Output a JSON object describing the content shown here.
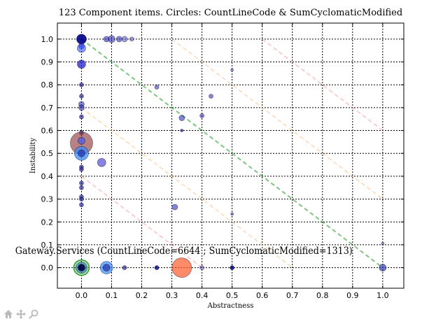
{
  "toolbar": {
    "icons": [
      "home-icon",
      "pan-icon",
      "zoom-icon"
    ]
  },
  "chart_data": {
    "type": "scatter",
    "title": "123 Component items. Circles: CountLineCode & SumCyclomaticModified",
    "xlabel": "Abstractness",
    "ylabel": "Instability",
    "xlim": [
      -0.08,
      1.07
    ],
    "ylim": [
      -0.09,
      1.07
    ],
    "x_ticks": [
      "0.0",
      "0.1",
      "0.2",
      "0.3",
      "0.4",
      "0.5",
      "0.6",
      "0.7",
      "0.8",
      "0.9",
      "1.0"
    ],
    "y_ticks": [
      "0.0",
      "0.1",
      "0.2",
      "0.3",
      "0.4",
      "0.5",
      "0.6",
      "0.7",
      "0.8",
      "0.9",
      "1.0"
    ],
    "grid": true,
    "reference_lines": [
      {
        "name": "main-sequence",
        "color": "#2ca02c",
        "from": [
          0.0,
          1.0
        ],
        "to": [
          1.0,
          0.0
        ]
      },
      {
        "name": "zone-0.3-lower",
        "color": "#ffb060",
        "from": [
          0.0,
          0.7
        ],
        "to": [
          0.7,
          0.0
        ]
      },
      {
        "name": "zone-0.3-upper",
        "color": "#ffb060",
        "from": [
          0.3,
          1.0
        ],
        "to": [
          1.0,
          0.3
        ]
      },
      {
        "name": "zone-0.6-lower",
        "color": "#ff7f7f",
        "from": [
          0.0,
          0.4
        ],
        "to": [
          0.4,
          0.0
        ]
      },
      {
        "name": "zone-0.6-upper",
        "color": "#ff7f7f",
        "from": [
          0.6,
          1.0
        ],
        "to": [
          1.0,
          0.6
        ]
      }
    ],
    "points": [
      {
        "x": 0.0,
        "y": 1.0,
        "r": 7,
        "color": "#00008b",
        "alpha": 0.9
      },
      {
        "x": 0.0,
        "y": 0.97,
        "r": 4,
        "color": "#3333cc",
        "alpha": 0.7
      },
      {
        "x": 0.0,
        "y": 0.96,
        "r": 6,
        "color": "#3355ff",
        "alpha": 0.6
      },
      {
        "x": 0.0,
        "y": 0.89,
        "r": 6,
        "color": "#2222cc",
        "alpha": 0.75
      },
      {
        "x": 0.0,
        "y": 0.8,
        "r": 3,
        "color": "#2a2a99",
        "alpha": 0.7
      },
      {
        "x": 0.0,
        "y": 0.75,
        "r": 3,
        "color": "#2a2a99",
        "alpha": 0.7
      },
      {
        "x": 0.0,
        "y": 0.715,
        "r": 4,
        "color": "#3333bb",
        "alpha": 0.6
      },
      {
        "x": 0.0,
        "y": 0.7,
        "r": 4,
        "color": "#3333bb",
        "alpha": 0.6
      },
      {
        "x": 0.0,
        "y": 0.66,
        "r": 3,
        "color": "#2a2a99",
        "alpha": 0.7
      },
      {
        "x": 0.0,
        "y": 0.59,
        "r": 3,
        "color": "#2a2a99",
        "alpha": 0.7
      },
      {
        "x": 0.0,
        "y": 0.545,
        "r": 16,
        "color": "#8b2e2e",
        "alpha": 0.6
      },
      {
        "x": 0.0,
        "y": 0.555,
        "r": 5,
        "color": "#3355ff",
        "alpha": 0.6
      },
      {
        "x": 0.0,
        "y": 0.5,
        "r": 10,
        "color": "#3a8cff",
        "alpha": 0.75
      },
      {
        "x": 0.0,
        "y": 0.5,
        "r": 5,
        "color": "#2233aa",
        "alpha": 0.7
      },
      {
        "x": 0.0,
        "y": 0.44,
        "r": 3,
        "color": "#2a2a99",
        "alpha": 0.7
      },
      {
        "x": 0.0,
        "y": 0.43,
        "r": 3,
        "color": "#2a2a99",
        "alpha": 0.7
      },
      {
        "x": 0.0,
        "y": 0.37,
        "r": 3,
        "color": "#2a2a99",
        "alpha": 0.7
      },
      {
        "x": 0.0,
        "y": 0.35,
        "r": 3,
        "color": "#2a2a99",
        "alpha": 0.7
      },
      {
        "x": 0.0,
        "y": 0.31,
        "r": 3,
        "color": "#2a2a99",
        "alpha": 0.7
      },
      {
        "x": 0.0,
        "y": 0.3,
        "r": 3,
        "color": "#2a2a99",
        "alpha": 0.7
      },
      {
        "x": 0.0,
        "y": 0.275,
        "r": 3,
        "color": "#2a2a99",
        "alpha": 0.7
      },
      {
        "x": 0.0,
        "y": 0.0,
        "r": 11,
        "color": "#2ca02c",
        "alpha": 0.35,
        "ring": "#2ca02c"
      },
      {
        "x": 0.0,
        "y": 0.0,
        "r": 8,
        "color": "#1f77b4",
        "alpha": 0.6
      },
      {
        "x": 0.0,
        "y": 0.0,
        "r": 5,
        "color": "#000044",
        "alpha": 0.9
      },
      {
        "x": 0.067,
        "y": 0.46,
        "r": 6,
        "color": "#3333cc",
        "alpha": 0.6
      },
      {
        "x": 0.083,
        "y": 1.0,
        "r": 4,
        "color": "#3333bb",
        "alpha": 0.6
      },
      {
        "x": 0.1,
        "y": 1.0,
        "r": 5,
        "color": "#3333bb",
        "alpha": 0.6
      },
      {
        "x": 0.125,
        "y": 1.0,
        "r": 4,
        "color": "#3333bb",
        "alpha": 0.6
      },
      {
        "x": 0.143,
        "y": 1.0,
        "r": 4,
        "color": "#5555bb",
        "alpha": 0.55
      },
      {
        "x": 0.167,
        "y": 1.0,
        "r": 3,
        "color": "#5555bb",
        "alpha": 0.55
      },
      {
        "x": 0.083,
        "y": 0.0,
        "r": 9,
        "color": "#3a8cff",
        "alpha": 0.7
      },
      {
        "x": 0.083,
        "y": 0.0,
        "r": 5,
        "color": "#2233aa",
        "alpha": 0.7
      },
      {
        "x": 0.143,
        "y": 0.0,
        "r": 3,
        "color": "#2a2a99",
        "alpha": 0.7
      },
      {
        "x": 0.25,
        "y": 0.0,
        "r": 3,
        "color": "#00008b",
        "alpha": 0.8
      },
      {
        "x": 0.25,
        "y": 0.79,
        "r": 3,
        "color": "#3333bb",
        "alpha": 0.6
      },
      {
        "x": 0.31,
        "y": 0.265,
        "r": 4,
        "color": "#3333bb",
        "alpha": 0.6
      },
      {
        "x": 0.333,
        "y": 0.655,
        "r": 4,
        "color": "#3333bb",
        "alpha": 0.6
      },
      {
        "x": 0.333,
        "y": 0.6,
        "r": 2,
        "color": "#2a2a99",
        "alpha": 0.7
      },
      {
        "x": 0.333,
        "y": 0.0,
        "r": 14,
        "color": "#ff5a2a",
        "alpha": 0.7
      },
      {
        "x": 0.4,
        "y": 0.665,
        "r": 3,
        "color": "#3333bb",
        "alpha": 0.6
      },
      {
        "x": 0.4,
        "y": 0.0,
        "r": 3,
        "color": "#5555bb",
        "alpha": 0.55
      },
      {
        "x": 0.43,
        "y": 0.75,
        "r": 3,
        "color": "#3333bb",
        "alpha": 0.6
      },
      {
        "x": 0.5,
        "y": 0.865,
        "r": 2,
        "color": "#5555bb",
        "alpha": 0.6
      },
      {
        "x": 0.5,
        "y": 0.235,
        "r": 2,
        "color": "#5555bb",
        "alpha": 0.6
      },
      {
        "x": 0.5,
        "y": 0.0,
        "r": 3,
        "color": "#00008b",
        "alpha": 0.85
      },
      {
        "x": 1.0,
        "y": 0.105,
        "r": 2,
        "color": "#5555bb",
        "alpha": 0.6
      },
      {
        "x": 1.0,
        "y": 0.0,
        "r": 5,
        "color": "#2233aa",
        "alpha": 0.65
      }
    ],
    "annotation": {
      "text": "Gateway.Services (CountLineCode=6644 ; SumCyclomaticModified=1313)",
      "x": -0.22,
      "y": 0.06
    }
  }
}
